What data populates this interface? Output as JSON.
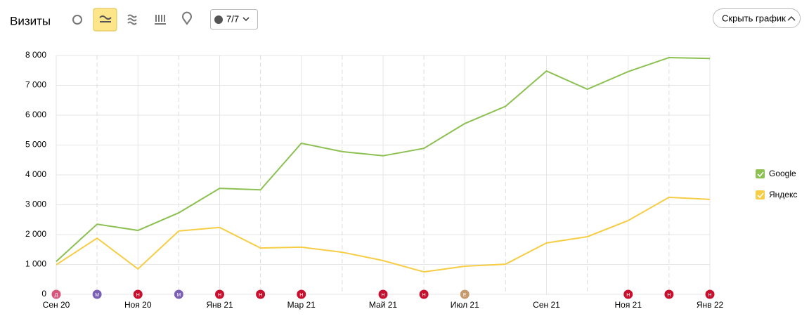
{
  "chart_data": {
    "type": "line",
    "title": "Визиты",
    "categories": [
      "Сен 20",
      null,
      "Ноя 20",
      null,
      "Янв 21",
      null,
      "Мар 21",
      null,
      "Май 21",
      null,
      "Июл 21",
      null,
      "Сен 21",
      null,
      "Ноя 21",
      null,
      "Янв 22"
    ],
    "series": [
      {
        "name": "Google",
        "color": "#8cc152",
        "values": [
          1100,
          2350,
          2140,
          2730,
          3550,
          3500,
          5060,
          4780,
          4640,
          4890,
          5720,
          6300,
          7480,
          6870,
          7460,
          7930,
          7900
        ]
      },
      {
        "name": "Яндекс",
        "color": "#f6cd45",
        "values": [
          990,
          1880,
          850,
          2120,
          2240,
          1550,
          1580,
          1410,
          1130,
          750,
          940,
          1010,
          1720,
          1930,
          2470,
          3250,
          3180
        ]
      }
    ],
    "ylim": [
      0,
      8000
    ],
    "yticks": [
      0,
      {
        "value": 1000,
        "label": "1 000"
      },
      {
        "value": 2000,
        "label": "2 000"
      },
      {
        "value": 3000,
        "label": "3 000"
      },
      {
        "value": 4000,
        "label": "4 000"
      },
      {
        "value": 5000,
        "label": "5 000"
      },
      {
        "value": 6000,
        "label": "6 000"
      },
      {
        "value": 7000,
        "label": "7 000"
      },
      {
        "value": 8000,
        "label": "8 000"
      }
    ],
    "grid": true,
    "legend": "right",
    "annotations": [
      "Д",
      "М",
      "Н",
      "М",
      "Н",
      "Н",
      "Н",
      null,
      "Н",
      "Н",
      "Е",
      null,
      null,
      null,
      "Н",
      "Н",
      "Н"
    ],
    "annotation_colors": [
      "#d9537a",
      "#7b5fb5",
      "#c8102e",
      "#7b5fb5",
      "#c8102e",
      "#c8102e",
      "#c8102e",
      null,
      "#c8102e",
      "#c8102e",
      "#c79a6c",
      null,
      null,
      null,
      "#c8102e",
      "#c8102e",
      "#c8102e"
    ]
  },
  "toolbar": {
    "notes_count": "7/7",
    "hide_chart": "Скрыть график"
  }
}
